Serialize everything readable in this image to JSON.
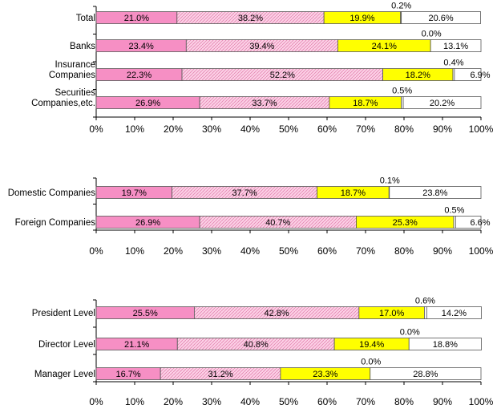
{
  "chart_data": [
    {
      "type": "bar",
      "orientation": "horizontal",
      "stacked": "percent",
      "categories": [
        "Total",
        "Banks",
        "Insurance Companies",
        "Securities Companies,etc."
      ],
      "category_lines": [
        [
          "Total"
        ],
        [
          "Banks"
        ],
        [
          "Insurance",
          "Companies"
        ],
        [
          "Securities",
          "Companies,etc."
        ]
      ],
      "series": [
        {
          "values": [
            21.0,
            23.4,
            22.3,
            26.9
          ],
          "color": "#f68fc4",
          "pattern": "solid"
        },
        {
          "values": [
            38.2,
            39.4,
            52.2,
            33.7
          ],
          "color": "#fcd0e6",
          "pattern": "hatched"
        },
        {
          "values": [
            19.9,
            24.1,
            18.2,
            18.7
          ],
          "color": "#ffff00",
          "pattern": "solid"
        },
        {
          "values": [
            0.2,
            0.0,
            0.4,
            0.5
          ],
          "color": "#ffffff",
          "pattern": "solid"
        },
        {
          "values": [
            20.6,
            13.1,
            6.9,
            20.2
          ],
          "color": "#ffffff",
          "pattern": "solid"
        }
      ],
      "value_labels": [
        [
          "21.0%",
          "38.2%",
          "19.9%",
          "0.2%",
          "20.6%"
        ],
        [
          "23.4%",
          "39.4%",
          "24.1%",
          "0.0%",
          "13.1%"
        ],
        [
          "22.3%",
          "52.2%",
          "18.2%",
          "0.4%",
          "6.9%"
        ],
        [
          "26.9%",
          "33.7%",
          "18.7%",
          "0.5%",
          "20.2%"
        ]
      ],
      "xlim": [
        0,
        100
      ],
      "x_tick_labels": [
        "0%",
        "10%",
        "20%",
        "30%",
        "40%",
        "50%",
        "60%",
        "70%",
        "80%",
        "90%",
        "100%"
      ],
      "grid": false,
      "legend": "none"
    },
    {
      "type": "bar",
      "orientation": "horizontal",
      "stacked": "percent",
      "categories": [
        "Domestic Companies",
        "Foreign Companies"
      ],
      "category_lines": [
        [
          "Domestic Companies"
        ],
        [
          "Foreign Companies"
        ]
      ],
      "series": [
        {
          "values": [
            19.7,
            26.9
          ],
          "color": "#f68fc4",
          "pattern": "solid"
        },
        {
          "values": [
            37.7,
            40.7
          ],
          "color": "#fcd0e6",
          "pattern": "hatched"
        },
        {
          "values": [
            18.7,
            25.3
          ],
          "color": "#ffff00",
          "pattern": "solid"
        },
        {
          "values": [
            0.1,
            0.5
          ],
          "color": "#ffffff",
          "pattern": "solid"
        },
        {
          "values": [
            23.8,
            6.6
          ],
          "color": "#ffffff",
          "pattern": "solid"
        }
      ],
      "value_labels": [
        [
          "19.7%",
          "37.7%",
          "18.7%",
          "0.1%",
          "23.8%"
        ],
        [
          "26.9%",
          "40.7%",
          "25.3%",
          "0.5%",
          "6.6%"
        ]
      ],
      "xlim": [
        0,
        100
      ],
      "x_tick_labels": [
        "0%",
        "10%",
        "20%",
        "30%",
        "40%",
        "50%",
        "60%",
        "70%",
        "80%",
        "90%",
        "100%"
      ],
      "grid": false,
      "legend": "none"
    },
    {
      "type": "bar",
      "orientation": "horizontal",
      "stacked": "percent",
      "categories": [
        "President Level",
        "Director Level",
        "Manager Level"
      ],
      "category_lines": [
        [
          "President Level"
        ],
        [
          "Director Level"
        ],
        [
          "Manager Level"
        ]
      ],
      "series": [
        {
          "values": [
            25.5,
            21.1,
            16.7
          ],
          "color": "#f68fc4",
          "pattern": "solid"
        },
        {
          "values": [
            42.8,
            40.8,
            31.2
          ],
          "color": "#fcd0e6",
          "pattern": "hatched"
        },
        {
          "values": [
            17.0,
            19.4,
            23.3
          ],
          "color": "#ffff00",
          "pattern": "solid"
        },
        {
          "values": [
            0.6,
            0.0,
            0.0
          ],
          "color": "#ffffff",
          "pattern": "solid"
        },
        {
          "values": [
            14.2,
            18.8,
            28.8
          ],
          "color": "#ffffff",
          "pattern": "solid"
        }
      ],
      "value_labels": [
        [
          "25.5%",
          "42.8%",
          "17.0%",
          "0.6%",
          "14.2%"
        ],
        [
          "21.1%",
          "40.8%",
          "19.4%",
          "0.0%",
          "18.8%"
        ],
        [
          "16.7%",
          "31.2%",
          "23.3%",
          "0.0%",
          "28.8%"
        ]
      ],
      "xlim": [
        0,
        100
      ],
      "x_tick_labels": [
        "0%",
        "10%",
        "20%",
        "30%",
        "40%",
        "50%",
        "60%",
        "70%",
        "80%",
        "90%",
        "100%"
      ],
      "grid": false,
      "legend": "none"
    }
  ]
}
